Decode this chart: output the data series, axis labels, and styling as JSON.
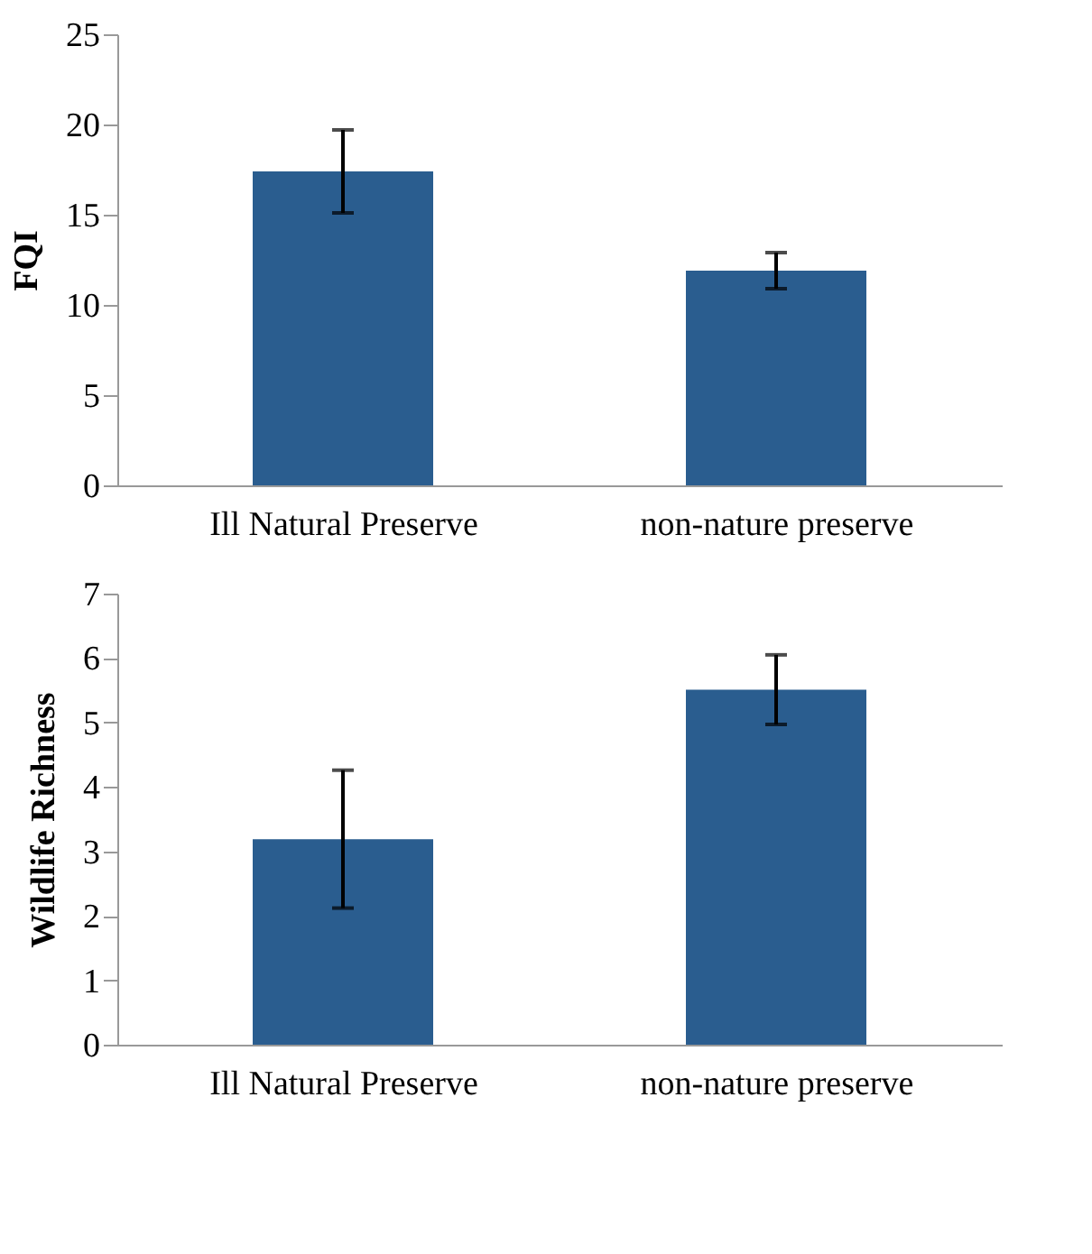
{
  "chart_data": [
    {
      "type": "bar",
      "categories": [
        "Ill Natural Preserve",
        "non-nature preserve"
      ],
      "values": [
        17.4,
        11.9
      ],
      "errors": [
        2.3,
        1.0
      ],
      "color": "#2a5d8f",
      "ylabel": "FQI",
      "ylim": [
        0,
        25
      ],
      "yticks": [
        0,
        5,
        10,
        15,
        20,
        25
      ],
      "grid": false
    },
    {
      "type": "bar",
      "categories": [
        "Ill Natural Preserve",
        "non-nature preserve"
      ],
      "values": [
        3.19,
        5.51
      ],
      "errors": [
        1.07,
        0.54
      ],
      "color": "#2a5d8f",
      "ylabel": "Wildlife Richness",
      "ylim": [
        0,
        7
      ],
      "yticks": [
        0,
        1,
        2,
        3,
        4,
        5,
        6,
        7
      ],
      "grid": false
    }
  ]
}
